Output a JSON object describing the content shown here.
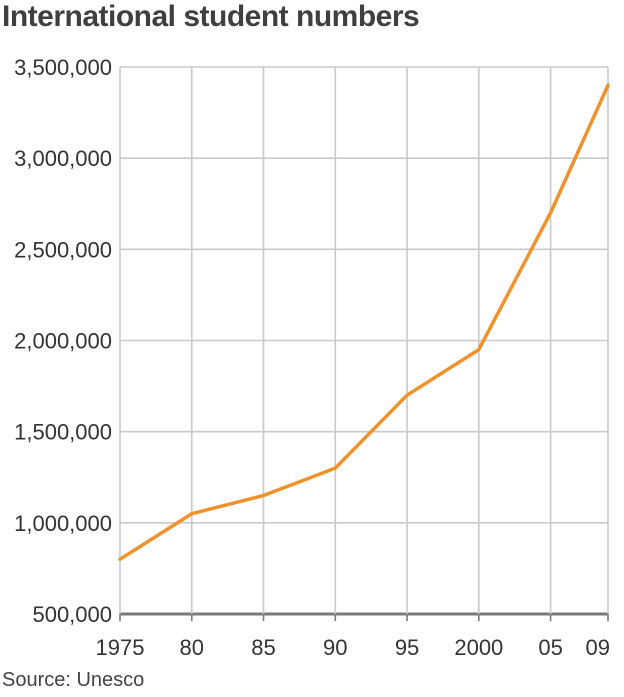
{
  "chart_data": {
    "type": "line",
    "title": "International student numbers",
    "source": "Source: Unesco",
    "x": [
      1975,
      1980,
      1985,
      1990,
      1995,
      2000,
      2005,
      2009
    ],
    "xtick_labels": [
      "1975",
      "80",
      "85",
      "90",
      "95",
      "2000",
      "05",
      "09"
    ],
    "series": [
      {
        "values": [
          800000,
          1050000,
          1150000,
          1300000,
          1700000,
          1950000,
          2700000,
          3400000
        ]
      }
    ],
    "yticks": [
      500000,
      1000000,
      1500000,
      2000000,
      2500000,
      3000000,
      3500000
    ],
    "ytick_labels": [
      "500,000",
      "1,000,000",
      "1,500,000",
      "2,000,000",
      "2,500,000",
      "3,000,000",
      "3,500,000"
    ],
    "xlim": [
      1975,
      2009
    ],
    "ylim": [
      500000,
      3500000
    ],
    "grid": true,
    "colors": {
      "line": "#f0922b",
      "grid": "#c9c9c9",
      "baseline": "#7a7a7a"
    }
  }
}
